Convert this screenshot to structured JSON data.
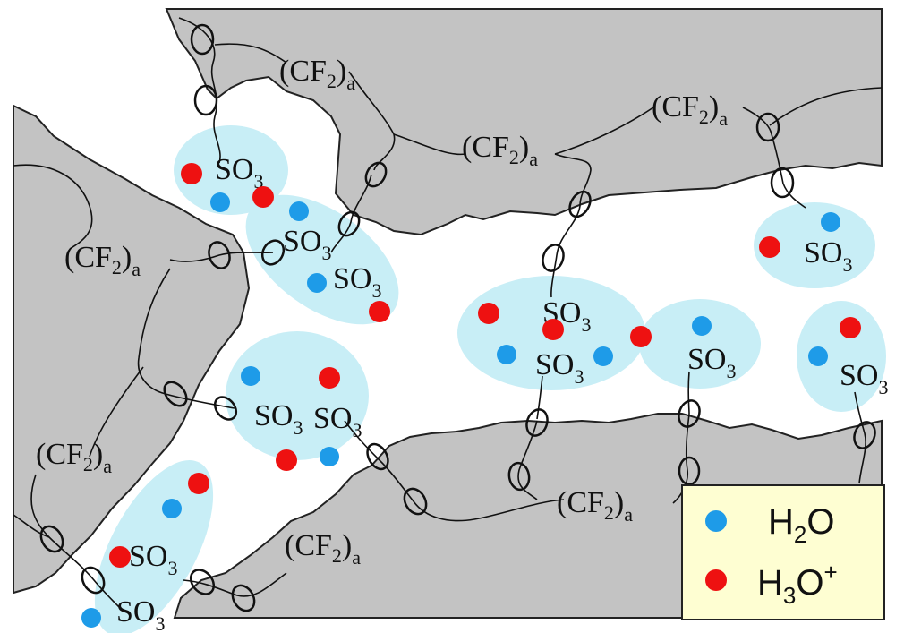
{
  "labels": {
    "cf2": "(CF",
    "cf2_sub": "2",
    "cf2_close": ")",
    "cf2_index": "a",
    "so3": "SO",
    "so3_sub": "3",
    "oxygen": "O"
  },
  "legend": {
    "water": {
      "main": "H",
      "sub": "2",
      "tail": "O",
      "color": "#1e9be8"
    },
    "hydronium": {
      "main": "H",
      "sub": "3",
      "tail": "O",
      "sup": "+",
      "color": "#ee1111"
    }
  },
  "colors": {
    "polymer": "#c3c3c3",
    "cluster": "#c8eef6",
    "legend_bg": "#fefed2"
  }
}
